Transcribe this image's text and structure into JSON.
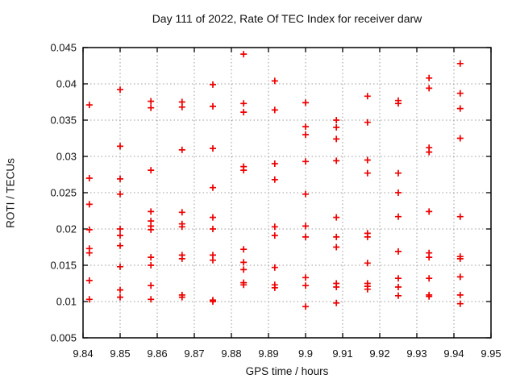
{
  "window": {
    "title": "Day 111 of 2022, Rate Of TEC Index for receiver darw"
  },
  "colors": {
    "marker": "#ee0000",
    "grid": "#9a9a9a",
    "border": "#000000",
    "text": "#111111",
    "background": "#ffffff"
  },
  "chart_data": {
    "type": "scatter",
    "title": "Day 111 of 2022, Rate Of TEC Index for receiver darw",
    "xlabel": "GPS time / hours",
    "ylabel": "ROTI / TECUs",
    "xlim": [
      9.84,
      9.95
    ],
    "ylim": [
      0.005,
      0.045
    ],
    "grid": true,
    "legend": false,
    "marker": {
      "shape": "plus",
      "color": "#ee0000"
    },
    "x_ticks": [
      {
        "v": 9.84,
        "label": "9.84"
      },
      {
        "v": 9.85,
        "label": "9.85"
      },
      {
        "v": 9.86,
        "label": "9.86"
      },
      {
        "v": 9.87,
        "label": "9.87"
      },
      {
        "v": 9.88,
        "label": "9.88"
      },
      {
        "v": 9.89,
        "label": "9.89"
      },
      {
        "v": 9.9,
        "label": "9.9"
      },
      {
        "v": 9.91,
        "label": "9.91"
      },
      {
        "v": 9.92,
        "label": "9.92"
      },
      {
        "v": 9.93,
        "label": "9.93"
      },
      {
        "v": 9.94,
        "label": "9.94"
      },
      {
        "v": 9.95,
        "label": "9.95"
      }
    ],
    "y_ticks": [
      {
        "v": 0.005,
        "label": "0.005"
      },
      {
        "v": 0.01,
        "label": "0.01"
      },
      {
        "v": 0.015,
        "label": "0.015"
      },
      {
        "v": 0.02,
        "label": "0.02"
      },
      {
        "v": 0.025,
        "label": "0.025"
      },
      {
        "v": 0.03,
        "label": "0.03"
      },
      {
        "v": 0.035,
        "label": "0.035"
      },
      {
        "v": 0.04,
        "label": "0.04"
      },
      {
        "v": 0.045,
        "label": "0.045"
      }
    ],
    "series": [
      {
        "name": "ROTI",
        "color": "#ee0000",
        "points": [
          [
            9.8417,
            0.0371
          ],
          [
            9.8417,
            0.027
          ],
          [
            9.8417,
            0.0234
          ],
          [
            9.8417,
            0.0199
          ],
          [
            9.8417,
            0.0173
          ],
          [
            9.8417,
            0.0167
          ],
          [
            9.8417,
            0.0129
          ],
          [
            9.8417,
            0.0103
          ],
          [
            9.85,
            0.0392
          ],
          [
            9.85,
            0.0314
          ],
          [
            9.85,
            0.0269
          ],
          [
            9.85,
            0.0248
          ],
          [
            9.85,
            0.02
          ],
          [
            9.85,
            0.0191
          ],
          [
            9.85,
            0.0177
          ],
          [
            9.85,
            0.0148
          ],
          [
            9.85,
            0.0116
          ],
          [
            9.85,
            0.0106
          ],
          [
            9.8583,
            0.0376
          ],
          [
            9.8583,
            0.0367
          ],
          [
            9.8583,
            0.0281
          ],
          [
            9.8583,
            0.0224
          ],
          [
            9.8583,
            0.0211
          ],
          [
            9.8583,
            0.0204
          ],
          [
            9.8583,
            0.0199
          ],
          [
            9.8583,
            0.0161
          ],
          [
            9.8583,
            0.015
          ],
          [
            9.8583,
            0.0122
          ],
          [
            9.8583,
            0.0103
          ],
          [
            9.8667,
            0.0375
          ],
          [
            9.8667,
            0.0368
          ],
          [
            9.8667,
            0.0309
          ],
          [
            9.8667,
            0.0223
          ],
          [
            9.8667,
            0.0207
          ],
          [
            9.8667,
            0.0203
          ],
          [
            9.8667,
            0.0164
          ],
          [
            9.8667,
            0.0159
          ],
          [
            9.8667,
            0.0109
          ],
          [
            9.8667,
            0.0106
          ],
          [
            9.875,
            0.0399
          ],
          [
            9.875,
            0.0369
          ],
          [
            9.875,
            0.0311
          ],
          [
            9.875,
            0.0257
          ],
          [
            9.875,
            0.0216
          ],
          [
            9.875,
            0.02
          ],
          [
            9.875,
            0.0164
          ],
          [
            9.875,
            0.0157
          ],
          [
            9.875,
            0.0102
          ],
          [
            9.875,
            0.01
          ],
          [
            9.8833,
            0.0441
          ],
          [
            9.8833,
            0.0373
          ],
          [
            9.8833,
            0.0361
          ],
          [
            9.8833,
            0.0286
          ],
          [
            9.8833,
            0.0281
          ],
          [
            9.8833,
            0.0172
          ],
          [
            9.8833,
            0.0154
          ],
          [
            9.8833,
            0.0144
          ],
          [
            9.8833,
            0.0126
          ],
          [
            9.8833,
            0.0123
          ],
          [
            9.8917,
            0.0404
          ],
          [
            9.8917,
            0.0364
          ],
          [
            9.8917,
            0.029
          ],
          [
            9.8917,
            0.0268
          ],
          [
            9.8917,
            0.0203
          ],
          [
            9.8917,
            0.0191
          ],
          [
            9.8917,
            0.0147
          ],
          [
            9.8917,
            0.0123
          ],
          [
            9.8917,
            0.0119
          ],
          [
            9.9,
            0.0374
          ],
          [
            9.9,
            0.0341
          ],
          [
            9.9,
            0.033
          ],
          [
            9.9,
            0.0293
          ],
          [
            9.9,
            0.0248
          ],
          [
            9.9,
            0.0204
          ],
          [
            9.9,
            0.0189
          ],
          [
            9.9,
            0.0133
          ],
          [
            9.9,
            0.0122
          ],
          [
            9.9,
            0.0093
          ],
          [
            9.9083,
            0.035
          ],
          [
            9.9083,
            0.034
          ],
          [
            9.9083,
            0.0324
          ],
          [
            9.9083,
            0.0294
          ],
          [
            9.9083,
            0.0216
          ],
          [
            9.9083,
            0.0189
          ],
          [
            9.9083,
            0.0175
          ],
          [
            9.9083,
            0.0125
          ],
          [
            9.9083,
            0.012
          ],
          [
            9.9083,
            0.0098
          ],
          [
            9.9167,
            0.0383
          ],
          [
            9.9167,
            0.0347
          ],
          [
            9.9167,
            0.0295
          ],
          [
            9.9167,
            0.0277
          ],
          [
            9.9167,
            0.0194
          ],
          [
            9.9167,
            0.0189
          ],
          [
            9.9167,
            0.0153
          ],
          [
            9.9167,
            0.0125
          ],
          [
            9.9167,
            0.0121
          ],
          [
            9.9167,
            0.0117
          ],
          [
            9.925,
            0.0377
          ],
          [
            9.925,
            0.0373
          ],
          [
            9.925,
            0.0277
          ],
          [
            9.925,
            0.025
          ],
          [
            9.925,
            0.0217
          ],
          [
            9.925,
            0.0169
          ],
          [
            9.925,
            0.0132
          ],
          [
            9.925,
            0.012
          ],
          [
            9.925,
            0.0108
          ],
          [
            9.9333,
            0.0408
          ],
          [
            9.9333,
            0.0394
          ],
          [
            9.9333,
            0.0312
          ],
          [
            9.9333,
            0.0306
          ],
          [
            9.9333,
            0.0224
          ],
          [
            9.9333,
            0.0167
          ],
          [
            9.9333,
            0.0161
          ],
          [
            9.9333,
            0.0132
          ],
          [
            9.9333,
            0.0109
          ],
          [
            9.9333,
            0.0107
          ],
          [
            9.9417,
            0.0428
          ],
          [
            9.9417,
            0.0387
          ],
          [
            9.9417,
            0.0366
          ],
          [
            9.9417,
            0.0325
          ],
          [
            9.9417,
            0.0217
          ],
          [
            9.9417,
            0.0162
          ],
          [
            9.9417,
            0.0159
          ],
          [
            9.9417,
            0.0134
          ],
          [
            9.9417,
            0.0109
          ],
          [
            9.9417,
            0.0097
          ]
        ]
      }
    ]
  }
}
